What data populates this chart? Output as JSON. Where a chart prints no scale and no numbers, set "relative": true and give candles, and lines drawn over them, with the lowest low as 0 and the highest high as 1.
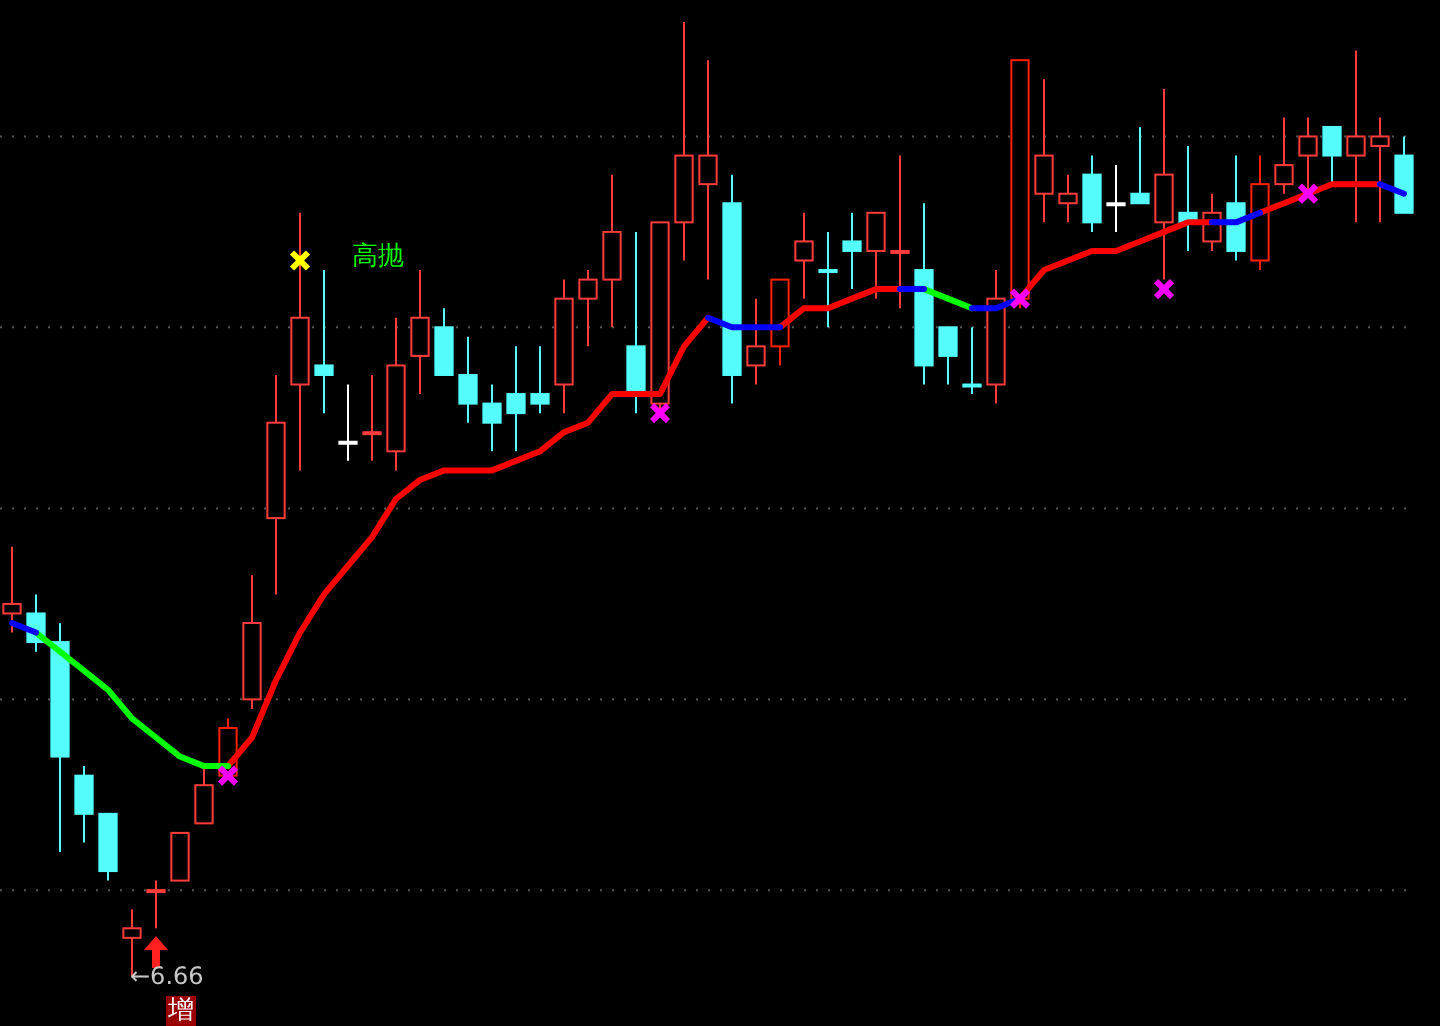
{
  "chart_data": {
    "type": "candlestick",
    "relative": true,
    "grid": "y",
    "categories": [
      null,
      null,
      null,
      null,
      null,
      null,
      null,
      null,
      null,
      null,
      null,
      null,
      null,
      null,
      null,
      null,
      null,
      null,
      null,
      null,
      null,
      null,
      null,
      null,
      null,
      null,
      null,
      null,
      null,
      null,
      null,
      null,
      null,
      null,
      null,
      null,
      null,
      null,
      null,
      null,
      null,
      null,
      null,
      null,
      null,
      null,
      null,
      null,
      null,
      null,
      null,
      null,
      null,
      null,
      null,
      null,
      null,
      null,
      null
    ],
    "ohlc": [
      [
        0.38,
        0.45,
        0.36,
        0.39
      ],
      [
        0.38,
        0.4,
        0.34,
        0.35
      ],
      [
        0.35,
        0.37,
        0.13,
        0.23
      ],
      [
        0.21,
        0.22,
        0.14,
        0.17
      ],
      [
        0.17,
        0.17,
        0.1,
        0.11
      ],
      [
        0.04,
        0.07,
        0,
        0.05
      ],
      [
        0.09,
        0.1,
        0.05,
        0.09
      ],
      [
        0.1,
        0.15,
        0.1,
        0.15
      ],
      [
        0.16,
        0.22,
        0.16,
        0.2
      ],
      [
        0.21,
        0.27,
        0.21,
        0.26
      ],
      [
        0.29,
        0.42,
        0.28,
        0.37
      ],
      [
        0.48,
        0.63,
        0.4,
        0.58
      ],
      [
        0.62,
        0.8,
        0.53,
        0.69
      ],
      [
        0.64,
        0.74,
        0.59,
        0.63
      ],
      [
        0.56,
        0.62,
        0.54,
        0.56
      ],
      [
        0.57,
        0.63,
        0.54,
        0.57
      ],
      [
        0.55,
        0.69,
        0.53,
        0.64
      ],
      [
        0.65,
        0.74,
        0.61,
        0.69
      ],
      [
        0.68,
        0.7,
        0.63,
        0.63
      ],
      [
        0.63,
        0.67,
        0.58,
        0.6
      ],
      [
        0.6,
        0.62,
        0.55,
        0.58
      ],
      [
        0.61,
        0.66,
        0.55,
        0.59
      ],
      [
        0.61,
        0.66,
        0.59,
        0.6
      ],
      [
        0.62,
        0.73,
        0.59,
        0.71
      ],
      [
        0.71,
        0.74,
        0.66,
        0.73
      ],
      [
        0.73,
        0.84,
        0.68,
        0.78
      ],
      [
        0.66,
        0.78,
        0.59,
        0.61
      ],
      [
        0.6,
        0.79,
        0.59,
        0.79
      ],
      [
        0.79,
        1,
        0.75,
        0.86
      ],
      [
        0.83,
        0.96,
        0.73,
        0.86
      ],
      [
        0.81,
        0.84,
        0.6,
        0.63
      ],
      [
        0.64,
        0.71,
        0.62,
        0.66
      ],
      [
        0.66,
        0.73,
        0.64,
        0.73
      ],
      [
        0.75,
        0.8,
        0.71,
        0.77
      ],
      [
        0.74,
        0.78,
        0.68,
        0.74
      ],
      [
        0.77,
        0.8,
        0.72,
        0.76
      ],
      [
        0.76,
        0.8,
        0.71,
        0.8
      ],
      [
        0.76,
        0.86,
        0.7,
        0.76
      ],
      [
        0.74,
        0.81,
        0.62,
        0.64
      ],
      [
        0.68,
        0.68,
        0.62,
        0.65
      ],
      [
        0.62,
        0.68,
        0.61,
        0.62
      ],
      [
        0.62,
        0.74,
        0.6,
        0.71
      ],
      [
        0.71,
        0.96,
        0.7,
        0.96
      ],
      [
        0.82,
        0.94,
        0.79,
        0.86
      ],
      [
        0.81,
        0.84,
        0.79,
        0.82
      ],
      [
        0.84,
        0.86,
        0.78,
        0.79
      ],
      [
        0.81,
        0.85,
        0.78,
        0.81
      ],
      [
        0.82,
        0.89,
        0.81,
        0.81
      ],
      [
        0.79,
        0.93,
        0.73,
        0.84
      ],
      [
        0.8,
        0.87,
        0.76,
        0.79
      ],
      [
        0.77,
        0.82,
        0.76,
        0.8
      ],
      [
        0.81,
        0.86,
        0.75,
        0.76
      ],
      [
        0.75,
        0.86,
        0.74,
        0.83
      ],
      [
        0.83,
        0.9,
        0.82,
        0.85
      ],
      [
        0.86,
        0.9,
        0.82,
        0.88
      ],
      [
        0.89,
        0.89,
        0.83,
        0.86
      ],
      [
        0.86,
        0.97,
        0.79,
        0.88
      ],
      [
        0.87,
        0.9,
        0.79,
        0.88
      ],
      [
        0.86,
        0.88,
        0.8,
        0.8
      ]
    ],
    "colors": [
      "#ff3c3c",
      "#54fcfc",
      "#54fcfc",
      "#54fcfc",
      "#54fcfc",
      "#ff3c3c",
      "#ff3c3c",
      "#ff3c3c",
      "#ff3c3c",
      "#ff2000",
      "#ff3c3c",
      "#ff3c3c",
      "#ff3c3c",
      "#54fcfc",
      "#ffffff",
      "#ff3c3c",
      "#ff3c3c",
      "#ff3c3c",
      "#54fcfc",
      "#54fcfc",
      "#54fcfc",
      "#54fcfc",
      "#54fcfc",
      "#ff3c3c",
      "#ff3c3c",
      "#ff3c3c",
      "#54fcfc",
      "#ff3c3c",
      "#ff3c3c",
      "#ff3c3c",
      "#54fcfc",
      "#ff3c3c",
      "#ff2000",
      "#ff3c3c",
      "#54fcfc",
      "#54fcfc",
      "#ff3c3c",
      "#ff3c3c",
      "#54fcfc",
      "#54fcfc",
      "#54fcfc",
      "#ff3c3c",
      "#ff2000",
      "#ff3c3c",
      "#ff3c3c",
      "#54fcfc",
      "#ffffff",
      "#54fcfc",
      "#ff3c3c",
      "#54fcfc",
      "#ff3c3c",
      "#54fcfc",
      "#ff2000",
      "#ff3c3c",
      "#ff3c3c",
      "#54fcfc",
      "#ff3c3c",
      "#ff3c3c",
      "#54fcfc"
    ],
    "series": [
      {
        "type": "line",
        "color": "#ff0000",
        "values": [
          null,
          null,
          null,
          null,
          null,
          null,
          null,
          null,
          null,
          0.22,
          0.25,
          0.31,
          0.36,
          0.4,
          0.43,
          0.46,
          0.5,
          0.52,
          0.53,
          0.53,
          0.53,
          0.54,
          0.55,
          0.57,
          0.58,
          0.61,
          0.61,
          0.61,
          0.66,
          0.69,
          null,
          null,
          0.68,
          0.7,
          0.7,
          0.71,
          0.72,
          0.72,
          null,
          null,
          null,
          null,
          0.71,
          0.74,
          0.75,
          0.76,
          0.76,
          0.77,
          0.78,
          0.79,
          0.79,
          null,
          0.8,
          0.81,
          0.82,
          0.83,
          0.83,
          0.83,
          null
        ]
      },
      {
        "type": "line",
        "color": "#00ff00",
        "values": [
          null,
          0.36,
          0.34,
          0.32,
          0.3,
          0.27,
          0.25,
          0.23,
          0.22,
          0.22,
          null,
          null,
          null,
          null,
          null,
          null,
          null,
          null,
          null,
          null,
          null,
          null,
          null,
          null,
          null,
          null,
          null,
          null,
          null,
          null,
          null,
          null,
          null,
          null,
          null,
          null,
          null,
          null,
          0.72,
          0.71,
          0.7,
          null,
          null,
          null,
          null,
          null,
          null,
          null,
          null,
          null,
          null,
          null,
          null,
          null,
          null,
          null,
          null,
          null,
          null
        ]
      },
      {
        "type": "line",
        "color": "#0000ff",
        "values": [
          0.37,
          0.36,
          null,
          null,
          null,
          null,
          null,
          null,
          null,
          null,
          null,
          null,
          null,
          null,
          null,
          null,
          null,
          null,
          null,
          null,
          null,
          null,
          null,
          null,
          null,
          null,
          null,
          null,
          null,
          0.69,
          0.68,
          0.68,
          0.68,
          null,
          null,
          null,
          null,
          0.72,
          0.72,
          null,
          0.7,
          0.7,
          0.71,
          null,
          null,
          null,
          null,
          null,
          null,
          null,
          0.79,
          0.79,
          0.8,
          null,
          null,
          null,
          null,
          0.83,
          0.82
        ]
      },
      {
        "type": "scatter",
        "marker": "cross",
        "color": "#ff00ff",
        "colors": [
          null,
          null,
          null,
          null,
          null,
          null,
          null,
          null,
          null,
          "#ff00ff",
          null,
          null,
          "#ffff00",
          null,
          null,
          null,
          null,
          null,
          null,
          null,
          null,
          null,
          null,
          null,
          null,
          null,
          null,
          "#ff00ff",
          null,
          null,
          null,
          null,
          null,
          null,
          null,
          null,
          null,
          null,
          null,
          null,
          null,
          null,
          "#ff00ff",
          null,
          null,
          null,
          null,
          null,
          "#ff00ff",
          null,
          null,
          null,
          null,
          null,
          "#ff00ff",
          null,
          null,
          null,
          null
        ],
        "values": [
          null,
          null,
          null,
          null,
          null,
          null,
          null,
          null,
          null,
          0.21,
          null,
          null,
          0.75,
          null,
          null,
          null,
          null,
          null,
          null,
          null,
          null,
          null,
          null,
          null,
          null,
          null,
          null,
          0.59,
          null,
          null,
          null,
          null,
          null,
          null,
          null,
          null,
          null,
          null,
          null,
          null,
          null,
          null,
          0.71,
          null,
          null,
          null,
          null,
          null,
          0.72,
          null,
          null,
          null,
          null,
          null,
          0.82,
          null,
          null,
          null,
          null
        ]
      }
    ],
    "annotations": [
      "高抛",
      "←6.66",
      "增"
    ]
  }
}
